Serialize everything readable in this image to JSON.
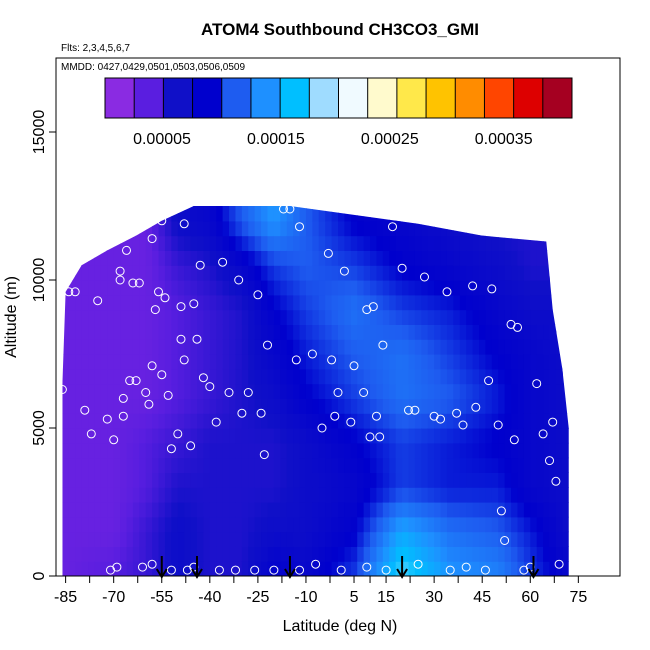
{
  "chart_data": {
    "type": "heatmap",
    "title": "ATOM4 Southbound CH3CO3_GMI",
    "flights_note": "Flts: 2,3,4,5,6,7",
    "dates_note": "MMDD: 0427,0429,0501,0503,0506,0509",
    "xlabel": "Latitude (deg N)",
    "ylabel": "Altitude (m)",
    "xlim": [
      -88,
      88
    ],
    "ylim": [
      0,
      17500
    ],
    "x_ticks": [
      -85,
      -70,
      -55,
      -40,
      -25,
      -10,
      5,
      15,
      30,
      45,
      60,
      75
    ],
    "x_tick_labels": [
      "-85",
      "-70",
      "-55",
      "-40",
      "-25",
      "-10",
      "5",
      "15",
      "30",
      "45",
      "60",
      "75"
    ],
    "y_ticks": [
      0,
      5000,
      10000,
      15000
    ],
    "y_tick_labels": [
      "0",
      "5000",
      "10000",
      "15000"
    ],
    "colorbar": {
      "min": 0.0,
      "max": 0.00041,
      "colors": [
        "#8a2be2",
        "#5a1ee0",
        "#1010c8",
        "#0000cd",
        "#1e5cf0",
        "#1e90ff",
        "#00bfff",
        "#9fdcff",
        "#f0faff",
        "#fffacd",
        "#ffe84a",
        "#ffc300",
        "#ff8c00",
        "#ff4500",
        "#dd0000",
        "#a50021"
      ],
      "tick_values": [
        5e-05,
        0.00015,
        0.00025,
        0.00035
      ],
      "tick_labels": [
        "0.00005",
        "0.00015",
        "0.00025",
        "0.00035"
      ]
    },
    "data_extent": {
      "lat_start": -86,
      "lat_end": 72,
      "top_profile": [
        {
          "lat": -86,
          "alt": 6500
        },
        {
          "lat": -85,
          "alt": 9600
        },
        {
          "lat": -80,
          "alt": 10500
        },
        {
          "lat": -72,
          "alt": 11000
        },
        {
          "lat": -63,
          "alt": 11500
        },
        {
          "lat": -55,
          "alt": 12000
        },
        {
          "lat": -45,
          "alt": 12500
        },
        {
          "lat": -15,
          "alt": 12500
        },
        {
          "lat": 5,
          "alt": 12200
        },
        {
          "lat": 25,
          "alt": 11900
        },
        {
          "lat": 45,
          "alt": 11500
        },
        {
          "lat": 65,
          "alt": 11300
        },
        {
          "lat": 67,
          "alt": 9000
        },
        {
          "lat": 70,
          "alt": 7000
        },
        {
          "lat": 72,
          "alt": 5000
        },
        {
          "lat": 72,
          "alt": 0
        }
      ]
    },
    "field_nodes": [
      {
        "lat": -86,
        "row": [
          2e-05,
          2e-05,
          2e-05,
          2e-05,
          2e-05,
          2e-05,
          2e-05,
          2e-05,
          2e-05
        ]
      },
      {
        "lat": -70,
        "row": [
          3e-05,
          2e-05,
          2e-05,
          2e-05,
          2e-05,
          2e-05,
          2e-05,
          2e-05,
          2e-05
        ]
      },
      {
        "lat": -60,
        "row": [
          4e-05,
          4e-05,
          3e-05,
          3e-05,
          2e-05,
          2e-05,
          2e-05,
          2e-05,
          2e-05
        ]
      },
      {
        "lat": -50,
        "row": [
          6e-05,
          6e-05,
          5e-05,
          4e-05,
          3e-05,
          3e-05,
          3e-05,
          4e-05,
          6e-05
        ]
      },
      {
        "lat": -40,
        "row": [
          5e-05,
          5e-05,
          5e-05,
          5e-05,
          4e-05,
          4e-05,
          4e-05,
          5e-05,
          7e-05
        ]
      },
      {
        "lat": -30,
        "row": [
          5e-05,
          5e-05,
          5e-05,
          5e-05,
          5e-05,
          5e-05,
          5e-05,
          7e-05,
          0.00011
        ]
      },
      {
        "lat": -20,
        "row": [
          8e-05,
          6e-05,
          5e-05,
          5e-05,
          6e-05,
          7e-05,
          8e-05,
          0.0001,
          0.00014
        ]
      },
      {
        "lat": -10,
        "row": [
          7e-05,
          6e-05,
          6e-05,
          6e-05,
          8e-05,
          9e-05,
          0.0001,
          0.00011,
          0.00011
        ]
      },
      {
        "lat": 5,
        "row": [
          0.0001,
          8e-05,
          7e-05,
          8e-05,
          0.0001,
          0.00011,
          0.00012,
          0.0001,
          8e-05
        ]
      },
      {
        "lat": 20,
        "row": [
          0.00018,
          0.00015,
          0.0001,
          0.0001,
          0.00012,
          0.00012,
          0.0001,
          8e-05,
          7e-05
        ]
      },
      {
        "lat": 35,
        "row": [
          0.00014,
          0.00012,
          9e-05,
          9e-05,
          0.00011,
          0.0001,
          9e-05,
          7e-05,
          6e-05
        ]
      },
      {
        "lat": 50,
        "row": [
          0.00013,
          0.00011,
          9e-05,
          8e-05,
          9e-05,
          8e-05,
          7e-05,
          6e-05,
          5e-05
        ]
      },
      {
        "lat": 60,
        "row": [
          0.0001,
          9e-05,
          7e-05,
          7e-05,
          7e-05,
          7e-05,
          6e-05,
          5e-05,
          5e-05
        ]
      },
      {
        "lat": 72,
        "row": [
          7e-05,
          6e-05,
          6e-05,
          6e-05,
          6e-05,
          6e-05,
          6e-05,
          5e-05,
          5e-05
        ]
      }
    ],
    "field_altitudes": [
      0,
      1500,
      3000,
      4500,
      6000,
      7500,
      9000,
      10500,
      12000
    ],
    "observations": [
      {
        "lat": -86,
        "alt": 6300
      },
      {
        "lat": -84,
        "alt": 9600
      },
      {
        "lat": -82,
        "alt": 9600
      },
      {
        "lat": -79,
        "alt": 5600
      },
      {
        "lat": -77,
        "alt": 4800
      },
      {
        "lat": -75,
        "alt": 9300
      },
      {
        "lat": -72,
        "alt": 5300
      },
      {
        "lat": -71,
        "alt": 200
      },
      {
        "lat": -70,
        "alt": 4600
      },
      {
        "lat": -69,
        "alt": 300
      },
      {
        "lat": -68,
        "alt": 10300
      },
      {
        "lat": -68,
        "alt": 10000
      },
      {
        "lat": -67,
        "alt": 6000
      },
      {
        "lat": -67,
        "alt": 5400
      },
      {
        "lat": -66,
        "alt": 11000
      },
      {
        "lat": -65,
        "alt": 6600
      },
      {
        "lat": -64,
        "alt": 9900
      },
      {
        "lat": -63,
        "alt": 6600
      },
      {
        "lat": -62,
        "alt": 9900
      },
      {
        "lat": -61,
        "alt": 300
      },
      {
        "lat": -60,
        "alt": 6200
      },
      {
        "lat": -59,
        "alt": 5800
      },
      {
        "lat": -58,
        "alt": 11400
      },
      {
        "lat": -58,
        "alt": 7100
      },
      {
        "lat": -57,
        "alt": 9000
      },
      {
        "lat": -56,
        "alt": 9600
      },
      {
        "lat": -55,
        "alt": 12000
      },
      {
        "lat": -55,
        "alt": 6800
      },
      {
        "lat": -54,
        "alt": 9400
      },
      {
        "lat": -53,
        "alt": 6100
      },
      {
        "lat": -52,
        "alt": 200
      },
      {
        "lat": -52,
        "alt": 4300
      },
      {
        "lat": -50,
        "alt": 4800
      },
      {
        "lat": -49,
        "alt": 9100
      },
      {
        "lat": -49,
        "alt": 8000
      },
      {
        "lat": -48,
        "alt": 11900
      },
      {
        "lat": -48,
        "alt": 7300
      },
      {
        "lat": -47,
        "alt": 200
      },
      {
        "lat": -46,
        "alt": 4400
      },
      {
        "lat": -45,
        "alt": 9200
      },
      {
        "lat": -44,
        "alt": 8000
      },
      {
        "lat": -43,
        "alt": 10500
      },
      {
        "lat": -42,
        "alt": 6700
      },
      {
        "lat": -40,
        "alt": 6400
      },
      {
        "lat": -38,
        "alt": 5200
      },
      {
        "lat": -36,
        "alt": 10600
      },
      {
        "lat": -34,
        "alt": 6200
      },
      {
        "lat": -32,
        "alt": 200
      },
      {
        "lat": -31,
        "alt": 10000
      },
      {
        "lat": -30,
        "alt": 5500
      },
      {
        "lat": -28,
        "alt": 6200
      },
      {
        "lat": -26,
        "alt": 200
      },
      {
        "lat": -25,
        "alt": 9500
      },
      {
        "lat": -24,
        "alt": 5500
      },
      {
        "lat": -23,
        "alt": 4100
      },
      {
        "lat": -22,
        "alt": 7800
      },
      {
        "lat": -20,
        "alt": 200
      },
      {
        "lat": -17,
        "alt": 12400
      },
      {
        "lat": -15,
        "alt": 12400
      },
      {
        "lat": -13,
        "alt": 7300
      },
      {
        "lat": -12,
        "alt": 11800
      },
      {
        "lat": -8,
        "alt": 7500
      },
      {
        "lat": -7,
        "alt": 400
      },
      {
        "lat": -5,
        "alt": 5000
      },
      {
        "lat": -3,
        "alt": 10900
      },
      {
        "lat": -2,
        "alt": 7300
      },
      {
        "lat": -1,
        "alt": 5400
      },
      {
        "lat": 0,
        "alt": 6200
      },
      {
        "lat": 1,
        "alt": 200
      },
      {
        "lat": 2,
        "alt": 10300
      },
      {
        "lat": 4,
        "alt": 5200
      },
      {
        "lat": 5,
        "alt": 7100
      },
      {
        "lat": 8,
        "alt": 6200
      },
      {
        "lat": 9,
        "alt": 9000
      },
      {
        "lat": 10,
        "alt": 4700
      },
      {
        "lat": 11,
        "alt": 9100
      },
      {
        "lat": 12,
        "alt": 5400
      },
      {
        "lat": 13,
        "alt": 4700
      },
      {
        "lat": 14,
        "alt": 7800
      },
      {
        "lat": 15,
        "alt": 200
      },
      {
        "lat": 17,
        "alt": 11800
      },
      {
        "lat": 20,
        "alt": 10400
      },
      {
        "lat": 22,
        "alt": 5600
      },
      {
        "lat": 24,
        "alt": 5600
      },
      {
        "lat": 25,
        "alt": 400
      },
      {
        "lat": 27,
        "alt": 10100
      },
      {
        "lat": 30,
        "alt": 5400
      },
      {
        "lat": 32,
        "alt": 5300
      },
      {
        "lat": 34,
        "alt": 9600
      },
      {
        "lat": 37,
        "alt": 5500
      },
      {
        "lat": 39,
        "alt": 5100
      },
      {
        "lat": 40,
        "alt": 300
      },
      {
        "lat": 42,
        "alt": 9800
      },
      {
        "lat": 43,
        "alt": 5700
      },
      {
        "lat": 46,
        "alt": 200
      },
      {
        "lat": 47,
        "alt": 6600
      },
      {
        "lat": 48,
        "alt": 9700
      },
      {
        "lat": 50,
        "alt": 5100
      },
      {
        "lat": 51,
        "alt": 2200
      },
      {
        "lat": 52,
        "alt": 1200
      },
      {
        "lat": 54,
        "alt": 8500
      },
      {
        "lat": 55,
        "alt": 4600
      },
      {
        "lat": 56,
        "alt": 8400
      },
      {
        "lat": 58,
        "alt": 200
      },
      {
        "lat": 60,
        "alt": 300
      },
      {
        "lat": 62,
        "alt": 6500
      },
      {
        "lat": 64,
        "alt": 4800
      },
      {
        "lat": 66,
        "alt": 3900
      },
      {
        "lat": 67,
        "alt": 5200
      },
      {
        "lat": 68,
        "alt": 3200
      },
      {
        "lat": 69,
        "alt": 400
      },
      {
        "lat": -45,
        "alt": 300
      },
      {
        "lat": -58,
        "alt": 400
      },
      {
        "lat": -37,
        "alt": 200
      },
      {
        "lat": -12,
        "alt": 200
      },
      {
        "lat": 9,
        "alt": 300
      },
      {
        "lat": 35,
        "alt": 200
      }
    ],
    "flight_arrows_lat": [
      -55,
      -44,
      -15,
      20,
      61
    ]
  }
}
